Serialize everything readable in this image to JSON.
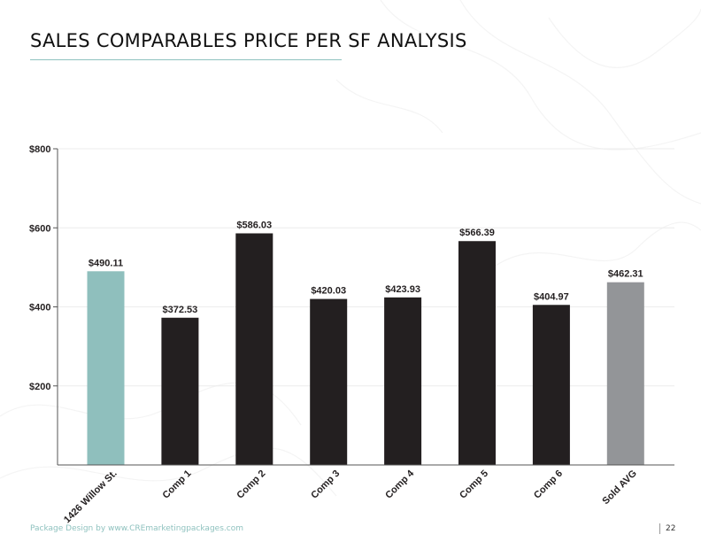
{
  "header": {
    "title": "SALES COMPARABLES PRICE PER SF ANALYSIS"
  },
  "footer": {
    "credit": "Package Design by www.CREmarketingpackages.com",
    "page_number": "22"
  },
  "colors": {
    "subject": "#8fbfbd",
    "comp": "#231f20",
    "average": "#939598",
    "accent": "#8fc2bf"
  },
  "chart_data": {
    "type": "bar",
    "title": "",
    "xlabel": "",
    "ylabel": "",
    "ylim": [
      0,
      800
    ],
    "yticks": [
      200,
      400,
      600,
      800
    ],
    "ytick_labels": [
      "$200",
      "$400",
      "$600",
      "$800"
    ],
    "categories": [
      "1426 Willow St.",
      "Comp 1",
      "Comp 2",
      "Comp 3",
      "Comp 4",
      "Comp 5",
      "Comp 6",
      "Sold AVG"
    ],
    "values": [
      490.11,
      372.53,
      586.03,
      420.03,
      423.93,
      566.39,
      404.97,
      462.31
    ],
    "value_labels": [
      "$490.11",
      "$372.53",
      "$586.03",
      "$420.03",
      "$423.93",
      "$566.39",
      "$404.97",
      "$462.31"
    ],
    "bar_colors": [
      "#8fbfbd",
      "#231f20",
      "#231f20",
      "#231f20",
      "#231f20",
      "#231f20",
      "#231f20",
      "#939598"
    ],
    "grid": "horizontal",
    "legend": "none"
  }
}
